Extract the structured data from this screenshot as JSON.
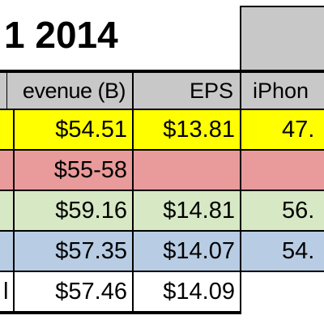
{
  "title": {
    "text": "1 2014"
  },
  "headers": {
    "revenue": "evenue (B)",
    "eps": "EPS",
    "iphone": "iPhon"
  },
  "rows": [
    {
      "label": "",
      "revenue": "$54.51",
      "eps": "$13.81",
      "iphone": "47.",
      "color": "#ffff00"
    },
    {
      "label": "",
      "revenue": "$55-58",
      "eps": "",
      "iphone": "",
      "color": "#e99a9a"
    },
    {
      "label": "",
      "revenue": "$59.16",
      "eps": "$14.81",
      "iphone": "56.",
      "color": "#d6e8c4"
    },
    {
      "label": "",
      "revenue": "$57.35",
      "eps": "$14.07",
      "iphone": "54.",
      "color": "#b8cce4"
    },
    {
      "label": "l",
      "revenue": "$57.46",
      "eps": "$14.09",
      "iphone": "",
      "color": "#ffffff"
    }
  ],
  "colors": {
    "header_gray": "#c8c8c8",
    "grid": "#000000"
  }
}
